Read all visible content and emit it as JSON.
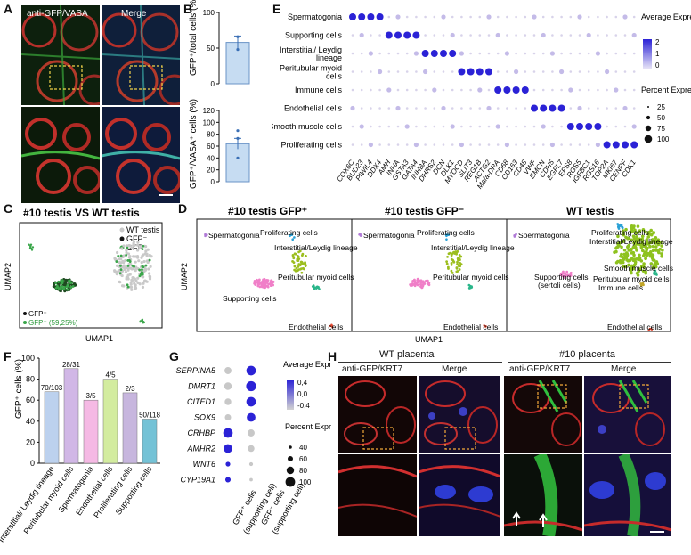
{
  "panel_letters": {
    "a": "A",
    "b": "B",
    "c": "C",
    "d": "D",
    "e": "E",
    "f": "F",
    "g": "G",
    "h": "H"
  },
  "panel_a": {
    "left_label": "anti-GFP/VASA",
    "right_label": "Merge"
  },
  "panel_b": {
    "top_ylabel": "GFP⁺/total cells (%)",
    "bottom_ylabel": "GFP⁺/VASA⁺ cells (%)"
  },
  "panel_c": {
    "title": "#10 testis VS WT testis",
    "xlabel": "UMAP1",
    "ylabel": "UMAP2",
    "legend_tr": [
      "WT testis",
      "GFP⁻",
      "GFP⁺"
    ],
    "legend_bl": [
      "GFP⁻",
      "GFP⁺ (59,25%)"
    ]
  },
  "panel_d": {
    "titles": [
      "#10 testis GFP⁺",
      "#10 testis GFP⁻",
      "WT testis"
    ],
    "xlabel": "UMAP1",
    "ylabel": "UMAP2",
    "labels_1": [
      "Spermatogonia",
      "Proliferating cells",
      "Interstitial/Leydig lineage",
      "Peritubular myoid cells",
      "Supporting cells",
      "Endothelial cells"
    ],
    "labels_2": [
      "Spermatogonia",
      "Proliferating cells",
      "Interstitial/Leydig lineage",
      "Peritubular myoid cells",
      "Endothelial cells"
    ],
    "labels_3": [
      "Spermatogonia",
      "Proliferating cells",
      "Interstitial/Leydig lineage",
      "Smooth muscle cells",
      "Supporting cells",
      "(sertoli cells)",
      "Peritubular myoid cells",
      "Immune cells",
      "Endothelial cells"
    ]
  },
  "panel_e": {
    "legend_avg": "Average Expression",
    "legend_pct": "Percent Expressed"
  },
  "panel_g": {
    "legend_avg": "Average Expression",
    "legend_pct": "Percent Expressed",
    "x_labels": [
      "GFP⁺ cells",
      "(supporting cell)",
      "GFP⁻ cells",
      "(supporting cell)"
    ]
  },
  "panel_h": {
    "wt_title": "WT placenta",
    "p10_title": "#10 placenta",
    "col_labels": [
      "anti-GFP/KRT7",
      "Merge",
      "anti-GFP/KRT7",
      "Merge"
    ]
  },
  "chart_data": [
    {
      "panel": "B-top",
      "type": "bar",
      "categories": [
        "GFP+/total cells"
      ],
      "values": [
        58
      ],
      "error": [
        9
      ],
      "points": [
        66,
        48
      ],
      "ylabel": "GFP⁺/total cells (%)",
      "ylim": [
        0,
        100
      ],
      "yticks": [
        0,
        50,
        100
      ]
    },
    {
      "panel": "B-bottom",
      "type": "bar",
      "categories": [
        "GFP+/VASA+ cells"
      ],
      "values": [
        64
      ],
      "error": [
        9
      ],
      "points": [
        86,
        73,
        40
      ],
      "ylabel": "GFP⁺/VASA⁺ cells (%)",
      "ylim": [
        0,
        120
      ],
      "yticks": [
        0,
        20,
        40,
        60,
        80,
        100,
        120
      ]
    },
    {
      "panel": "E",
      "type": "dotplot",
      "rows": [
        "Spermatogonia",
        "Supporting cells",
        "Interstitial/ Leydig lineage",
        "Peritubular myoid cells",
        "Immune cells",
        "Endothelial cells",
        "Smooth muscle cells",
        "Proliferating cells"
      ],
      "genes": [
        "COX6C",
        "BUD23",
        "PIWIL4",
        "DDX4",
        "AMH",
        "INHA",
        "GSTA3",
        "GATA4",
        "INHBA",
        "DHRS2",
        "DCN",
        "DLK1",
        "MYOCD",
        "SLIT3",
        "REG1B",
        "ACTG2",
        "Mafa-DRA",
        "CD68",
        "CD163",
        "CD48",
        "VWF",
        "EMCN",
        "CDH5",
        "EGFL7",
        "EPS8",
        "RGS5",
        "IGFBC1",
        "RGS16",
        "TOP2A",
        "MKI67",
        "CENPF",
        "CDK1"
      ],
      "high_expression": [
        [
          0,
          1,
          2,
          3
        ],
        [
          4,
          5,
          6,
          7
        ],
        [
          8,
          9,
          10,
          11
        ],
        [
          12,
          13,
          14,
          15
        ],
        [
          16,
          17,
          18,
          19
        ],
        [
          20,
          21,
          22,
          23
        ],
        [
          24,
          25,
          26,
          27
        ],
        [
          28,
          29,
          30,
          31
        ]
      ],
      "legend_expression_ticks": [
        2,
        1,
        0
      ],
      "legend_percent": [
        25,
        50,
        75,
        100
      ]
    },
    {
      "panel": "F",
      "type": "bar",
      "ylabel": "GFP⁺ cells (%)",
      "ylim": [
        0,
        100
      ],
      "yticks": [
        0,
        20,
        40,
        60,
        80,
        100
      ],
      "categories": [
        "Interstitial/ Leydig lineage",
        "Peritubular myoid cells",
        "Spermatogonia",
        "Endothelial cells",
        "Proliferating cells",
        "Supporting cells"
      ],
      "values": [
        68,
        90,
        60,
        80,
        67,
        42
      ],
      "data_labels": [
        "70/103",
        "28/31",
        "3/5",
        "4/5",
        "2/3",
        "50/118"
      ],
      "colors": [
        "#bcd1ee",
        "#d1b7e6",
        "#f5b9e4",
        "#d3ec9f",
        "#c7b6de",
        "#74c2d6"
      ]
    },
    {
      "panel": "G",
      "type": "dotplot",
      "genes": [
        "SERPINA5",
        "DMRT1",
        "CITED1",
        "SOX9",
        "CRHBP",
        "AMHR2",
        "WNT6",
        "CYP19A1"
      ],
      "groups": [
        "GFP+ cells (supporting cell)",
        "GFP- cells (supporting cell)"
      ],
      "expression": [
        [
          -0.4,
          0.4
        ],
        [
          -0.4,
          0.4
        ],
        [
          -0.4,
          0.4
        ],
        [
          -0.4,
          0.4
        ],
        [
          0.4,
          -0.4
        ],
        [
          0.4,
          -0.4
        ],
        [
          0.4,
          -0.4
        ],
        [
          0.4,
          -0.4
        ]
      ],
      "percent": [
        [
          60,
          90
        ],
        [
          65,
          95
        ],
        [
          55,
          90
        ],
        [
          50,
          80
        ],
        [
          90,
          60
        ],
        [
          80,
          55
        ],
        [
          30,
          20
        ],
        [
          40,
          15
        ]
      ],
      "legend_expression_ticks": [
        0.4,
        0.0,
        -0.4
      ],
      "legend_percent": [
        40,
        60,
        80,
        100
      ]
    }
  ]
}
